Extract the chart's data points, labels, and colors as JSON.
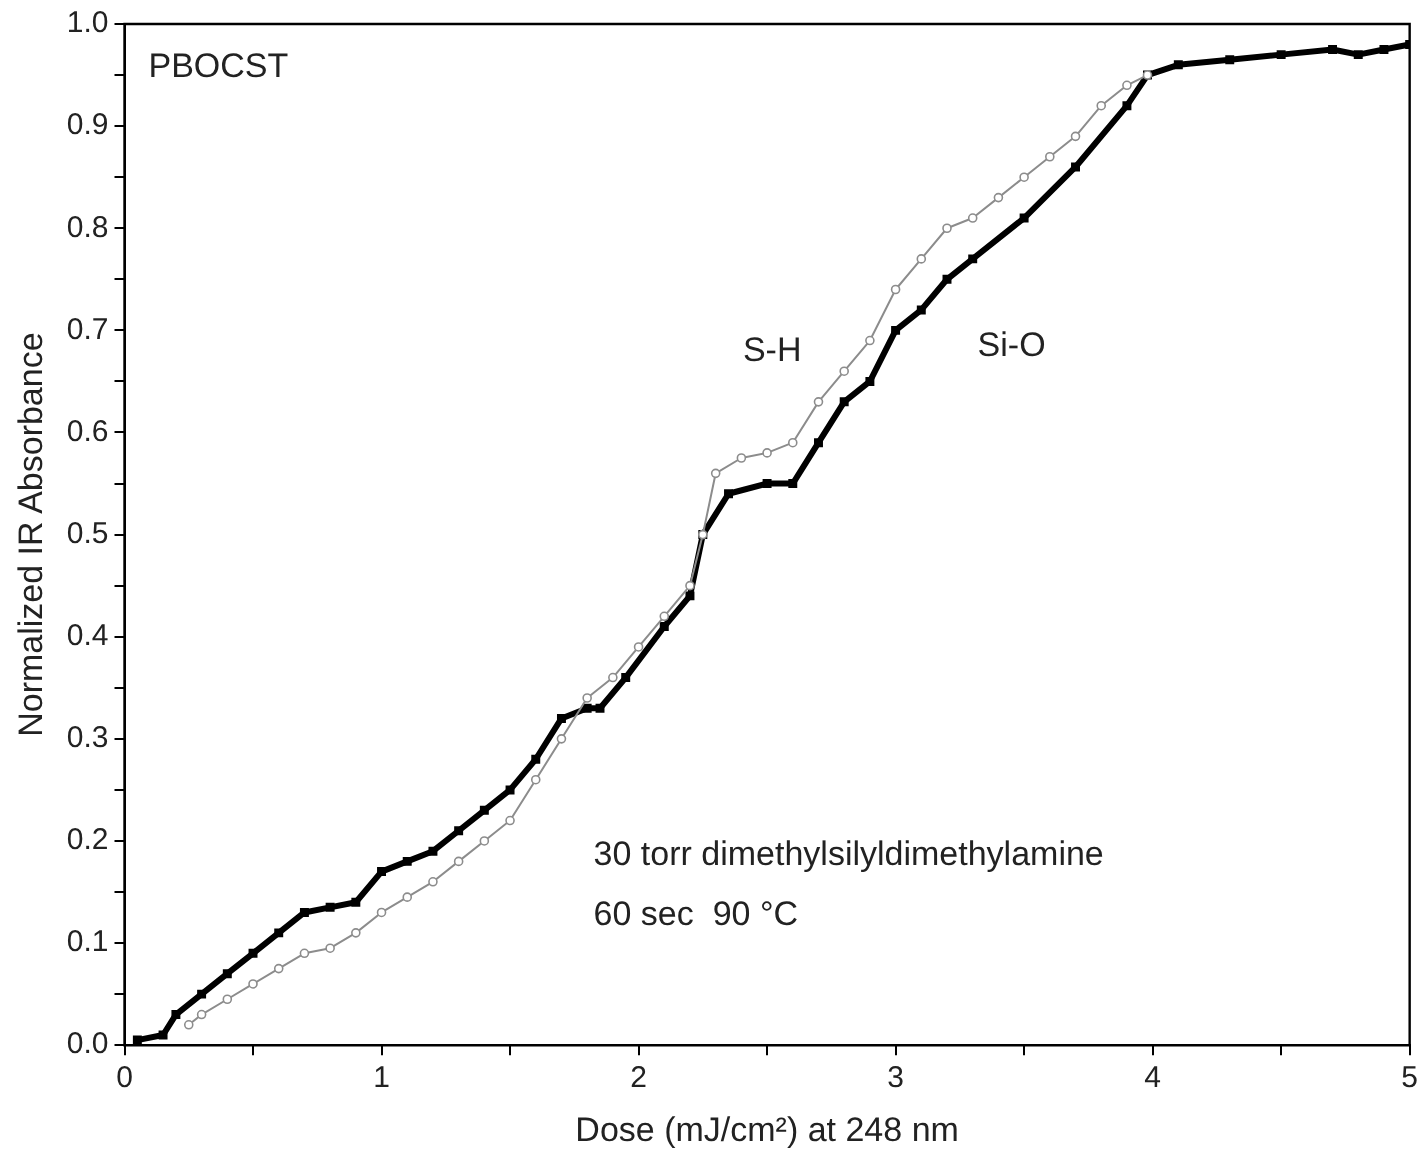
{
  "chart_data": {
    "type": "line",
    "xlabel": "Dose (mJ/cm²) at 248 nm",
    "ylabel": "Normalized IR Absorbance",
    "xlim": [
      0,
      5
    ],
    "xticks": [
      0,
      {
        "value": 0.5,
        "label": null
      },
      1,
      {
        "value": 1.5,
        "label": null
      },
      2,
      {
        "value": 2.5,
        "label": null
      },
      3,
      {
        "value": 3.5,
        "label": null
      },
      4,
      {
        "value": 4.5,
        "label": null
      },
      5
    ],
    "ylim": [
      0,
      1
    ],
    "yticks": [
      {
        "value": 0,
        "label": "0.0"
      },
      {
        "value": 0.05,
        "label": null
      },
      0.1,
      {
        "value": 0.15,
        "label": null
      },
      0.2,
      {
        "value": 0.25,
        "label": null
      },
      0.3,
      {
        "value": 0.35,
        "label": null
      },
      0.4,
      {
        "value": 0.45,
        "label": null
      },
      0.5,
      {
        "value": 0.55,
        "label": null
      },
      0.6,
      {
        "value": 0.65,
        "label": null
      },
      0.7,
      {
        "value": 0.75,
        "label": null
      },
      0.8,
      {
        "value": 0.85,
        "label": null
      },
      0.9,
      {
        "value": 0.95,
        "label": null
      },
      {
        "value": 1,
        "label": "1.0"
      }
    ],
    "grid": false,
    "legend": false,
    "annotations": [
      "PBOCST",
      "30 torr dimethylsilyldimethylamine",
      "60 sec  90 °C"
    ],
    "series": [
      {
        "name": "S-H",
        "color": "#8c8c8c",
        "marker": "circle",
        "x": [
          0.25,
          0.3,
          0.4,
          0.5,
          0.6,
          0.7,
          0.8,
          0.9,
          1.0,
          1.1,
          1.2,
          1.3,
          1.4,
          1.5,
          1.6,
          1.7,
          1.8,
          1.9,
          2.0,
          2.1,
          2.2,
          2.25,
          2.3,
          2.4,
          2.5,
          2.6,
          2.7,
          2.8,
          2.9,
          3.0,
          3.1,
          3.2,
          3.3,
          3.4,
          3.5,
          3.6,
          3.7,
          3.8,
          3.9,
          3.98
        ],
        "values": [
          0.02,
          0.03,
          0.045,
          0.06,
          0.075,
          0.09,
          0.095,
          0.11,
          0.13,
          0.145,
          0.16,
          0.18,
          0.2,
          0.22,
          0.26,
          0.3,
          0.34,
          0.36,
          0.39,
          0.42,
          0.45,
          0.5,
          0.56,
          0.575,
          0.58,
          0.59,
          0.63,
          0.66,
          0.69,
          0.74,
          0.77,
          0.8,
          0.81,
          0.83,
          0.85,
          0.87,
          0.89,
          0.92,
          0.94,
          0.95
        ]
      },
      {
        "name": "Si-O",
        "color": "#000000",
        "marker": "square",
        "x": [
          0.05,
          0.15,
          0.2,
          0.3,
          0.4,
          0.5,
          0.6,
          0.7,
          0.8,
          0.9,
          1.0,
          1.1,
          1.2,
          1.3,
          1.4,
          1.5,
          1.6,
          1.7,
          1.8,
          1.85,
          1.95,
          2.1,
          2.2,
          2.25,
          2.35,
          2.5,
          2.6,
          2.7,
          2.8,
          2.9,
          3.0,
          3.1,
          3.2,
          3.3,
          3.5,
          3.7,
          3.9,
          3.98,
          4.1,
          4.3,
          4.5,
          4.7,
          4.8,
          4.9,
          5.0
        ],
        "values": [
          0.005,
          0.01,
          0.03,
          0.05,
          0.07,
          0.09,
          0.11,
          0.13,
          0.135,
          0.14,
          0.17,
          0.18,
          0.19,
          0.21,
          0.23,
          0.25,
          0.28,
          0.32,
          0.33,
          0.33,
          0.36,
          0.41,
          0.44,
          0.5,
          0.54,
          0.55,
          0.55,
          0.59,
          0.63,
          0.65,
          0.7,
          0.72,
          0.75,
          0.77,
          0.81,
          0.86,
          0.92,
          0.95,
          0.96,
          0.965,
          0.97,
          0.975,
          0.97,
          0.975,
          0.98
        ]
      }
    ]
  }
}
